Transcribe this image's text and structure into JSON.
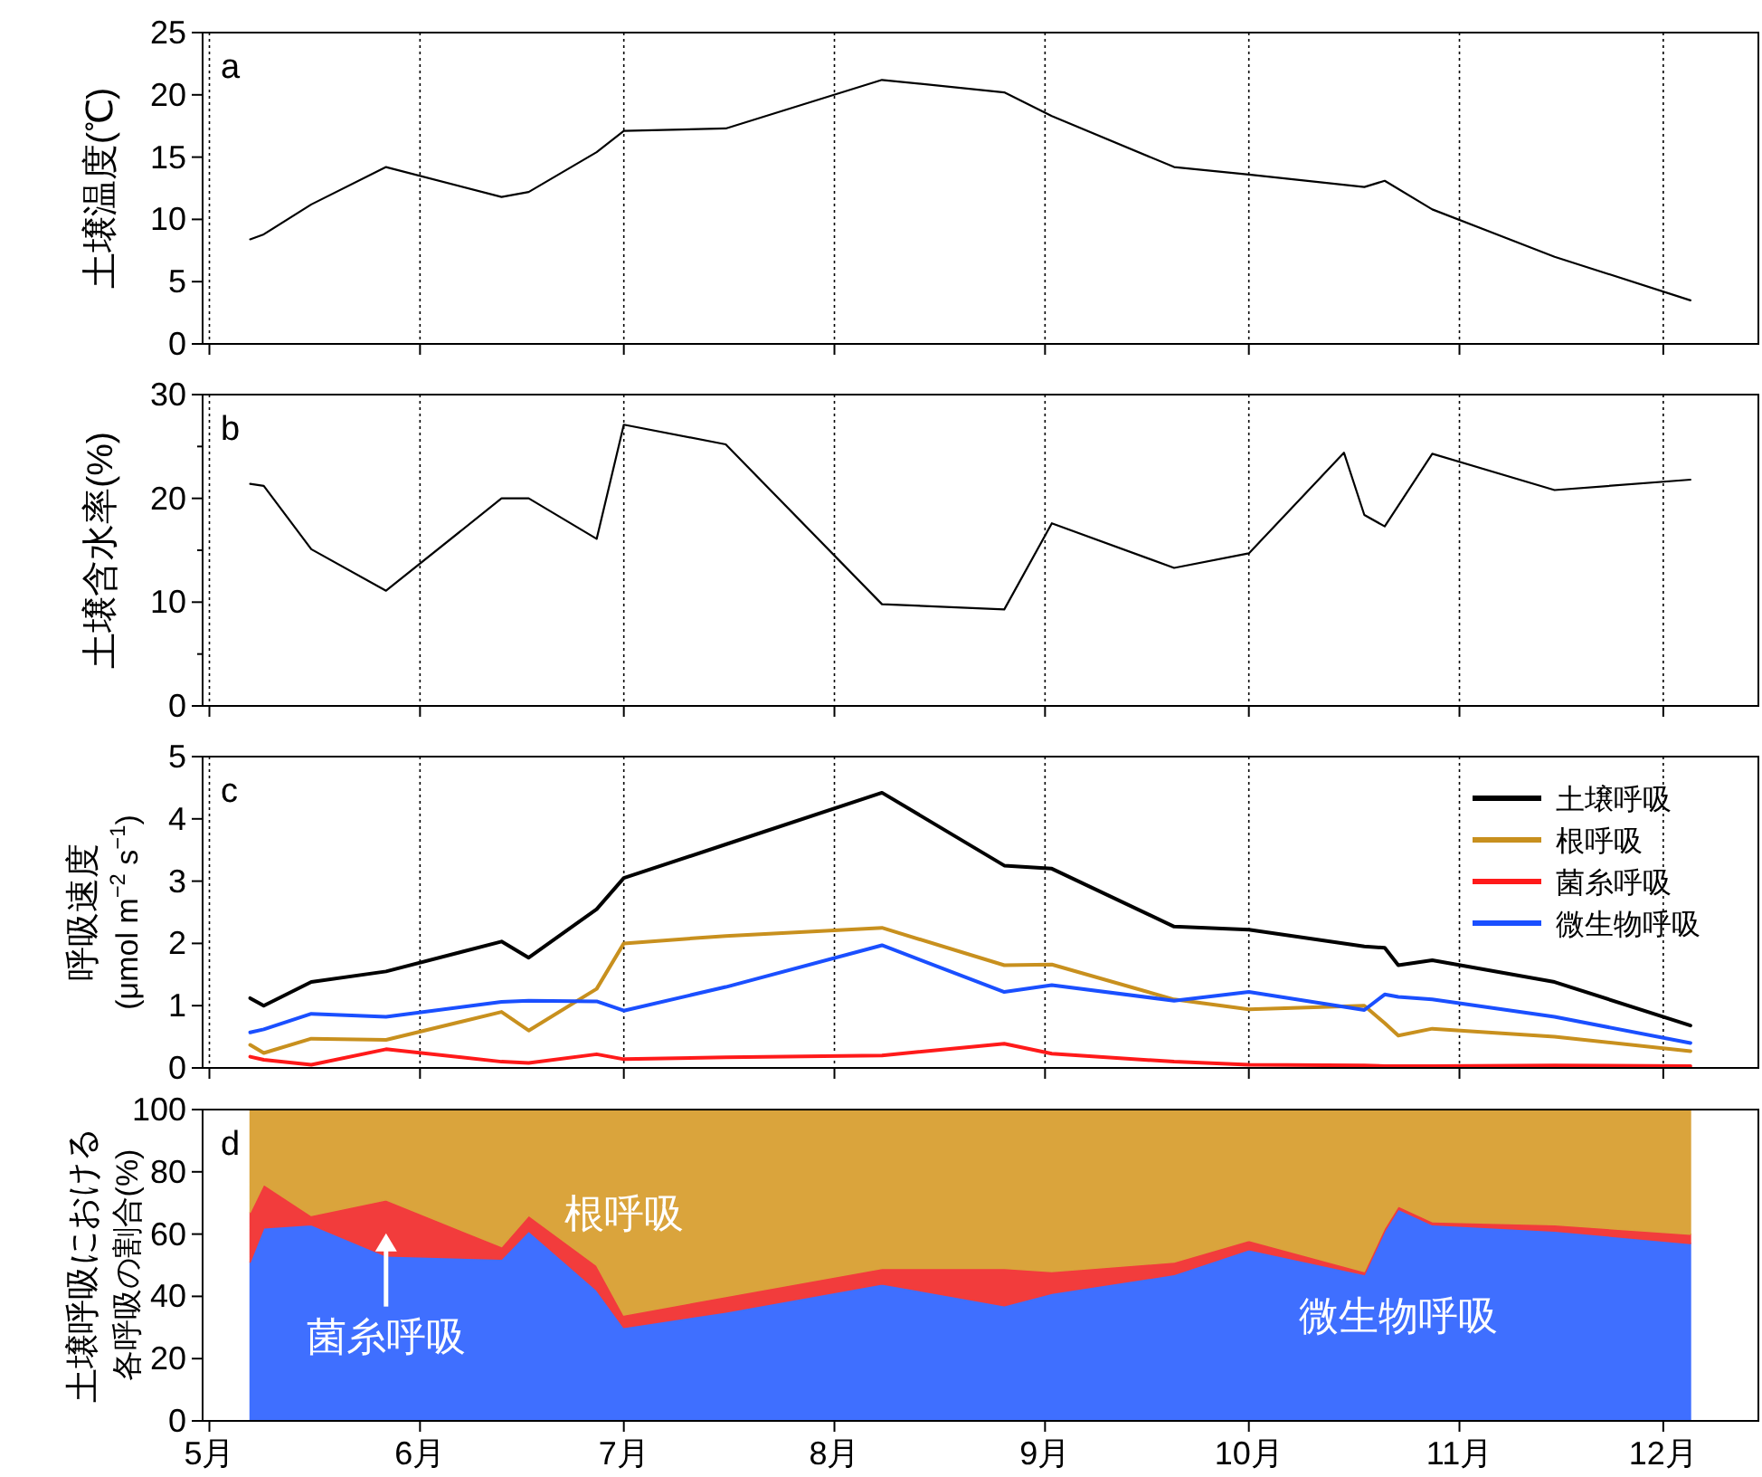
{
  "chart_data": [
    {
      "type": "line",
      "ylabel": "土壌温度(℃)",
      "annotations": [
        "a"
      ],
      "grid": "x",
      "tick_labels": "y",
      "xlim": [
        "--04-30",
        "--12-15"
      ],
      "xticks": [
        "--05-01",
        "--06-01",
        "--07-01",
        "--08-01",
        "--09-01",
        "--10-01",
        "--11-01",
        "--12-01"
      ],
      "ylim": [
        0,
        25
      ],
      "yticks": [
        0,
        5,
        10,
        15,
        20,
        25
      ],
      "x": [
        "--05-07",
        "--05-09",
        "--05-16",
        "--05-27",
        "--06-13",
        "--06-17",
        "--06-27",
        "--07-01",
        "--07-16",
        "--08-08",
        "--08-26",
        "--09-02",
        "--09-20",
        "--10-01",
        "--10-18",
        "--10-21",
        "--10-28",
        "--11-15",
        "--12-05"
      ],
      "series": [
        {
          "color": "#000000",
          "values": [
            8.4,
            8.8,
            11.2,
            14.2,
            11.8,
            12.2,
            15.4,
            17.1,
            17.3,
            21.2,
            20.2,
            18.3,
            14.2,
            13.6,
            12.6,
            13.1,
            10.8,
            7.0,
            3.5
          ]
        }
      ]
    },
    {
      "type": "line",
      "ylabel": "土壌含水率(%)",
      "annotations": [
        "b"
      ],
      "grid": "x",
      "tick_labels": "y",
      "xlim": [
        "--04-30",
        "--12-15"
      ],
      "xticks": [
        "--05-01",
        "--06-01",
        "--07-01",
        "--08-01",
        "--09-01",
        "--10-01",
        "--11-01",
        "--12-01"
      ],
      "ylim": [
        0,
        30
      ],
      "yticks": [
        0,
        {
          "value": 5,
          "label": null
        },
        10,
        {
          "value": 15,
          "label": null
        },
        20,
        {
          "value": 25,
          "label": null
        },
        30
      ],
      "x": [
        "--05-07",
        "--05-09",
        "--05-16",
        "--05-27",
        "--06-13",
        "--06-17",
        "--06-27",
        "--07-01",
        "--07-16",
        "--08-08",
        "--08-26",
        "--09-02",
        "--09-20",
        "--10-01",
        "--10-15",
        "--10-18",
        "--10-21",
        "--10-28",
        "--11-15",
        "--12-05"
      ],
      "series": [
        {
          "color": "#000000",
          "values": [
            21.4,
            21.2,
            15.1,
            11.1,
            20.0,
            20.0,
            16.1,
            27.1,
            25.2,
            9.8,
            9.3,
            17.6,
            13.3,
            14.7,
            24.4,
            18.4,
            17.3,
            24.3,
            20.8,
            21.8
          ]
        }
      ]
    },
    {
      "type": "line",
      "ylabel": "呼吸速度\n(μmol m$^{−2}$ s$^{−1}$)",
      "annotations": [
        "c"
      ],
      "grid": "x",
      "tick_labels": "y",
      "legend": "top right",
      "xlim": [
        "--04-30",
        "--12-15"
      ],
      "xticks": [
        "--05-01",
        "--06-01",
        "--07-01",
        "--08-01",
        "--09-01",
        "--10-01",
        "--11-01",
        "--12-01"
      ],
      "ylim": [
        0,
        5
      ],
      "yticks": [
        0,
        1,
        2,
        3,
        4,
        5
      ],
      "x": [
        "--05-07",
        "--05-09",
        "--05-16",
        "--05-27",
        "--06-13",
        "--06-17",
        "--06-27",
        "--07-01",
        "--07-16",
        "--08-08",
        "--08-26",
        "--09-02",
        "--09-20",
        "--10-01",
        "--10-18",
        "--10-21",
        "--10-23",
        "--10-28",
        "--11-15",
        "--12-05"
      ],
      "series": [
        {
          "name": "土壌呼吸",
          "color": "#000000",
          "values": [
            1.12,
            1.0,
            1.38,
            1.55,
            2.03,
            1.77,
            2.55,
            3.05,
            3.59,
            4.42,
            3.25,
            3.2,
            2.27,
            2.22,
            1.95,
            1.93,
            1.65,
            1.73,
            1.38,
            0.68
          ]
        },
        {
          "name": "根呼吸",
          "color": "#c8901e",
          "values": [
            0.37,
            0.24,
            0.47,
            0.45,
            0.9,
            0.6,
            1.27,
            2.0,
            2.12,
            2.25,
            1.65,
            1.66,
            1.1,
            0.94,
            1.0,
            0.72,
            0.52,
            0.63,
            0.5,
            0.27
          ]
        },
        {
          "name": "菌糸呼吸",
          "color": "#ff1a1a",
          "values": [
            0.18,
            0.13,
            0.05,
            0.3,
            0.1,
            0.08,
            0.22,
            0.14,
            0.17,
            0.2,
            0.39,
            0.23,
            0.1,
            0.05,
            0.04,
            0.03,
            0.03,
            0.03,
            0.04,
            0.03
          ]
        },
        {
          "name": "微生物呼吸",
          "color": "#1a4fff",
          "values": [
            0.57,
            0.62,
            0.87,
            0.82,
            1.06,
            1.08,
            1.07,
            0.92,
            1.3,
            1.97,
            1.22,
            1.33,
            1.08,
            1.22,
            0.93,
            1.18,
            1.14,
            1.1,
            0.82,
            0.4
          ]
        }
      ]
    },
    {
      "type": "area",
      "stacked": true,
      "ylabel": "土壌呼吸における各呼吸の割合(%)",
      "annotations": [
        "d"
      ],
      "xlim": [
        "--04-30",
        "--12-15"
      ],
      "xticks": [
        {
          "value": "--05-01",
          "label": "5月"
        },
        {
          "value": "--06-01",
          "label": "6月"
        },
        {
          "value": "--07-01",
          "label": "7月"
        },
        {
          "value": "--08-01",
          "label": "8月"
        },
        {
          "value": "--09-01",
          "label": "9月"
        },
        {
          "value": "--10-01",
          "label": "10月"
        },
        {
          "value": "--11-01",
          "label": "11月"
        },
        {
          "value": "--12-01",
          "label": "12月"
        }
      ],
      "ylim": [
        0,
        100
      ],
      "yticks": [
        0,
        20,
        40,
        60,
        80,
        100
      ],
      "x": [
        "--05-07",
        "--05-09",
        "--05-16",
        "--05-27",
        "--06-13",
        "--06-17",
        "--06-27",
        "--07-01",
        "--07-16",
        "--08-08",
        "--08-26",
        "--09-02",
        "--09-20",
        "--10-01",
        "--10-18",
        "--10-21",
        "--10-23",
        "--10-28",
        "--11-15",
        "--12-05"
      ],
      "series": [
        {
          "name": "微生物呼吸",
          "color": "#3f6fff",
          "values": [
            51,
            62,
            63,
            53,
            52,
            61,
            42,
            30,
            35,
            44,
            37,
            41,
            47,
            55,
            47,
            61,
            68,
            63,
            61,
            57
          ]
        },
        {
          "name": "菌糸呼吸",
          "color": "#f23c3c",
          "values": [
            16,
            14,
            3,
            18,
            4,
            5,
            8,
            4,
            5,
            5,
            12,
            7,
            4,
            3,
            1,
            1,
            1,
            1,
            2,
            3
          ]
        },
        {
          "name": "根呼吸",
          "color": "#daa43c",
          "values": [
            33,
            24,
            34,
            29,
            44,
            34,
            50,
            66,
            60,
            51,
            51,
            52,
            49,
            42,
            52,
            38,
            31,
            36,
            37,
            40
          ]
        }
      ]
    }
  ]
}
